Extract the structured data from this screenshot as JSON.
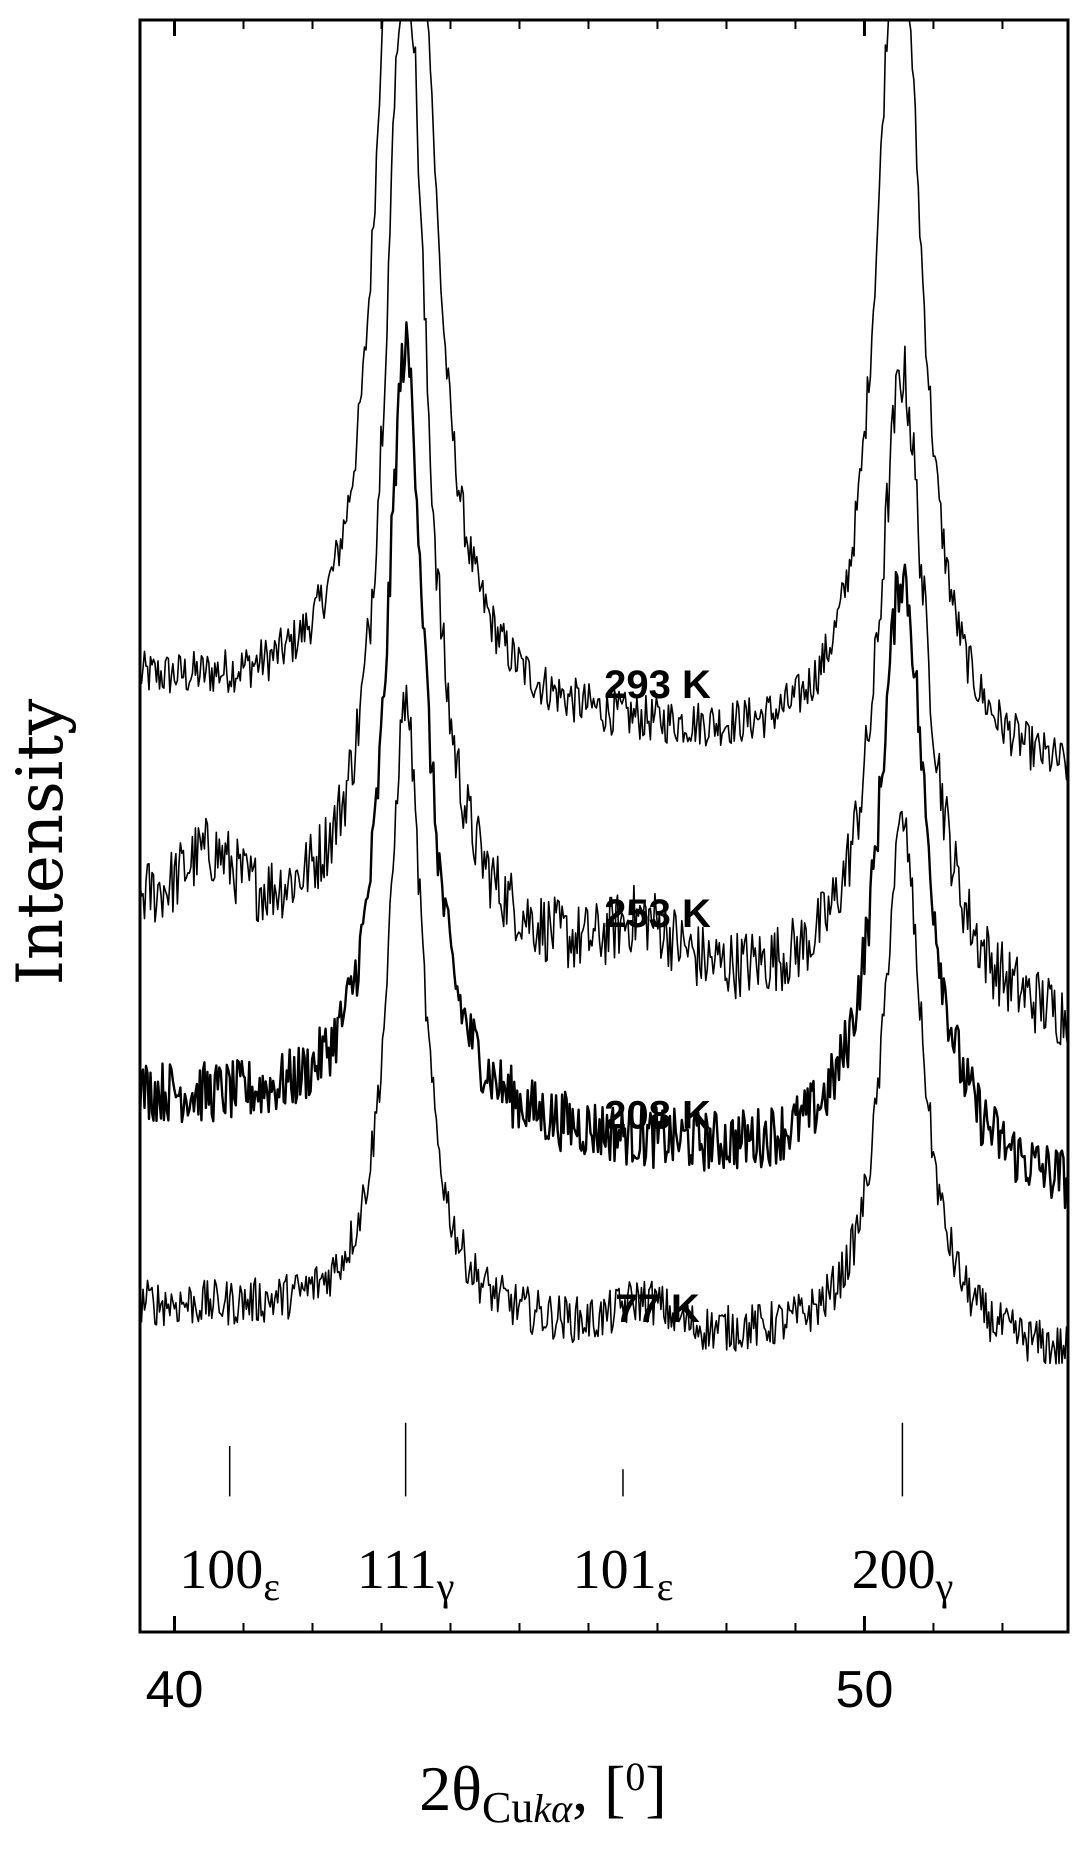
{
  "chart_data": {
    "type": "line",
    "title": "",
    "ylabel": "Intensity",
    "xlabel": {
      "main": "2θ",
      "sub": "Cu",
      "sub2": "kα",
      "unit": ", [",
      "unit_sup": "0",
      "unit_close": "]"
    },
    "xlim": [
      39.5,
      52.95
    ],
    "x_major_ticks": [
      40,
      50
    ],
    "x_minor_ticks": [
      41,
      42,
      43,
      44,
      45,
      46,
      47,
      48,
      49,
      51,
      52
    ],
    "grid": false,
    "legend": "none",
    "series": [
      {
        "name": "293 K",
        "baseline_left": 9.0,
        "baseline_right": 7.7,
        "noise": 0.3,
        "peaks": [
          {
            "center": 43.35,
            "height": 17.5,
            "width": 0.35
          },
          {
            "center": 50.5,
            "height": 11.5,
            "width": 0.38
          }
        ],
        "humps": []
      },
      {
        "name": "253 K",
        "baseline_left": 6.2,
        "baseline_right": 4.5,
        "noise": 0.45,
        "peaks": [
          {
            "center": 43.35,
            "height": 13.0,
            "width": 0.35
          },
          {
            "center": 50.55,
            "height": 8.2,
            "width": 0.42
          }
        ],
        "humps": [
          {
            "center": 40.5,
            "height": 0.6,
            "width": 0.5
          },
          {
            "center": 46.8,
            "height": 0.5,
            "width": 0.6
          }
        ]
      },
      {
        "name": "208 K",
        "baseline_left": 3.7,
        "baseline_right": 2.4,
        "noise": 0.4,
        "peaks": [
          {
            "center": 43.35,
            "height": 10.0,
            "width": 0.35
          },
          {
            "center": 50.55,
            "height": 7.8,
            "width": 0.42
          }
        ],
        "humps": []
      },
      {
        "name": "77 K",
        "baseline_left": 1.0,
        "baseline_right": 0.3,
        "noise": 0.3,
        "peaks": [
          {
            "center": 43.35,
            "height": 8.0,
            "width": 0.3
          },
          {
            "center": 50.55,
            "height": 6.8,
            "width": 0.35
          }
        ],
        "humps": [
          {
            "center": 46.8,
            "height": 0.35,
            "width": 0.5
          }
        ]
      }
    ],
    "annotations": [
      {
        "text": "293 K",
        "x": 47.0,
        "y": 8.85
      },
      {
        "text": "253 K",
        "x": 47.0,
        "y": 5.9
      },
      {
        "text": "208 K",
        "x": 47.0,
        "y": 3.3
      },
      {
        "text": "77 K",
        "x": 47.0,
        "y": 0.8
      }
    ],
    "reflections": [
      {
        "label": "100",
        "sub": "ε",
        "x": 40.8,
        "y_top": -0.8,
        "y_bottom": -1.45
      },
      {
        "label": "111",
        "sub": "γ",
        "x": 43.35,
        "y_top": -0.5,
        "y_bottom": -1.45
      },
      {
        "label": "101",
        "sub": "ε",
        "x": 46.5,
        "y_top": -1.1,
        "y_bottom": -1.45
      },
      {
        "label": "200",
        "sub": "γ",
        "x": 50.55,
        "y_top": -0.5,
        "y_bottom": -1.45
      }
    ],
    "ylim": [
      -3.2,
      17.6
    ]
  }
}
